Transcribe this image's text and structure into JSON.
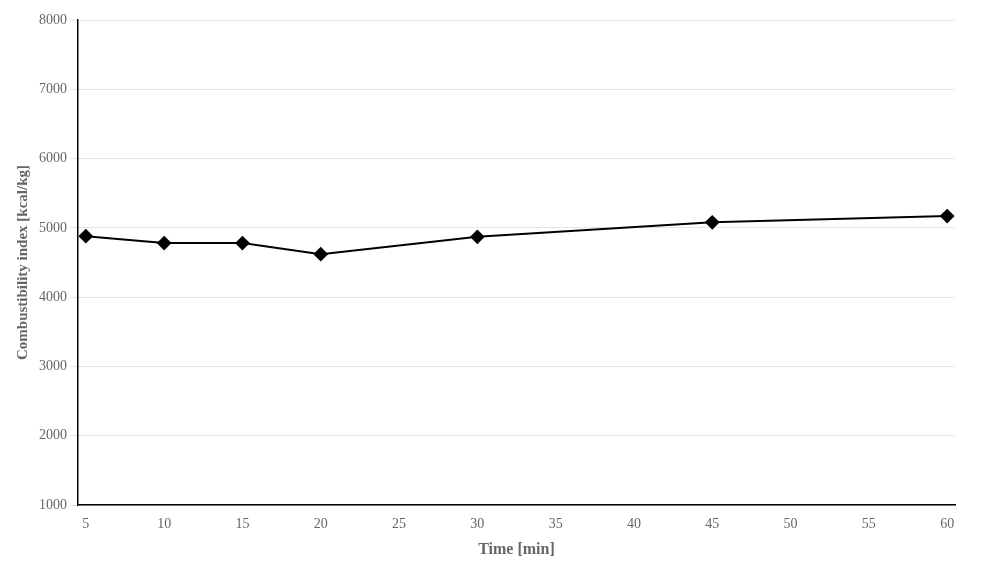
{
  "chart_data": {
    "type": "line",
    "xlabel": "Time [min]",
    "ylabel": "Combustibility index [kcal/kg]",
    "x": [
      5,
      10,
      15,
      20,
      30,
      45,
      60
    ],
    "values": [
      4880,
      4780,
      4780,
      4620,
      4870,
      5080,
      5170
    ],
    "color": "#000000",
    "marker": "diamond",
    "xlim": [
      4.5,
      60.5
    ],
    "ylim": [
      1000,
      8000
    ],
    "xticks": [
      5,
      10,
      15,
      20,
      25,
      30,
      35,
      40,
      45,
      50,
      55,
      60
    ],
    "yticks": [
      1000,
      2000,
      3000,
      4000,
      5000,
      6000,
      7000,
      8000
    ],
    "grid": "y"
  }
}
